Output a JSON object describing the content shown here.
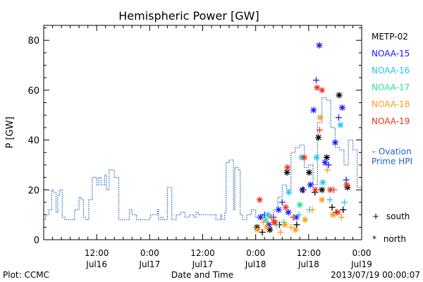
{
  "chart_data": {
    "type": "scatter",
    "title": "Hemispheric Power [GW]",
    "ylabel": "P [GW]",
    "xlabel": "Date and Time",
    "ylim": [
      0,
      86
    ],
    "xlim_hours": [
      0,
      72
    ],
    "yticks": [
      0,
      20,
      40,
      60,
      80
    ],
    "xticks": [
      {
        "h": 12,
        "time": "12:00",
        "date": "Jul16"
      },
      {
        "h": 24,
        "time": "0:00",
        "date": "Jul17"
      },
      {
        "h": 36,
        "time": "12:00",
        "date": "Jul17"
      },
      {
        "h": 48,
        "time": "0:00",
        "date": "Jul18"
      },
      {
        "h": 60,
        "time": "12:00",
        "date": "Jul18"
      },
      {
        "h": 72,
        "time": "0:00",
        "date": "Jul19"
      }
    ],
    "legend": [
      {
        "name": "METP-02",
        "color": "#000000"
      },
      {
        "name": "NOAA-15",
        "color": "#1a1aff"
      },
      {
        "name": "NOAA-16",
        "color": "#1ec8ee"
      },
      {
        "name": "NOAA-17",
        "color": "#22e88a"
      },
      {
        "name": "NOAA-18",
        "color": "#ff9a1a"
      },
      {
        "name": "NOAA-19",
        "color": "#ee3322"
      }
    ],
    "ovation": {
      "label_line1": "– Ovation",
      "label_line2": "Prime HPI",
      "color": "#2266bb",
      "x": [
        0,
        0.4,
        1.2,
        1.8,
        2.2,
        2.8,
        3.2,
        3.6,
        4.2,
        4.8,
        5.5,
        6.5,
        7,
        7.4,
        8,
        8.5,
        9,
        9.5,
        10.2,
        11,
        12,
        12.4,
        13,
        13.8,
        14.2,
        14.8,
        15.5,
        16,
        17,
        17.3,
        18,
        19,
        19.4,
        20,
        21,
        22,
        23,
        24,
        24.2,
        25,
        25.8,
        26,
        26.5,
        27,
        28,
        29,
        30,
        31,
        32,
        33,
        34,
        34.5,
        35,
        36,
        38,
        39,
        40,
        40.3,
        41,
        41.3,
        42,
        43,
        43.3,
        44,
        44.5,
        45,
        46,
        47,
        48,
        49,
        50,
        52,
        53,
        54,
        55,
        56,
        57,
        58,
        59,
        60,
        61,
        62,
        63,
        64,
        65,
        66,
        67,
        68,
        69,
        70,
        71,
        72
      ],
      "y": [
        8,
        10,
        12,
        20,
        19,
        11,
        18,
        20,
        9,
        8,
        8,
        8,
        12,
        12,
        17,
        16,
        9,
        8,
        16,
        25,
        22,
        25,
        22,
        26,
        20,
        28,
        28,
        25,
        8,
        8,
        8,
        8,
        12,
        10,
        8,
        8,
        8,
        9,
        10,
        10,
        12,
        8,
        9,
        8,
        21,
        8,
        10,
        11,
        9,
        10,
        9,
        11,
        10,
        10,
        10,
        8,
        10,
        8,
        11,
        31,
        32,
        12,
        29,
        28,
        10,
        8,
        10,
        12,
        9,
        10,
        10,
        12,
        17,
        22,
        20,
        35,
        37,
        38,
        29,
        30,
        22,
        47,
        57,
        56,
        45,
        37,
        36,
        30,
        40,
        36,
        21,
        10
      ]
    },
    "points": [
      {
        "sat": 0,
        "x": 48.3,
        "y": 5,
        "m": "*"
      },
      {
        "sat": 0,
        "x": 49.5,
        "y": 3,
        "m": "+"
      },
      {
        "sat": 0,
        "x": 51.2,
        "y": 4,
        "m": "*"
      },
      {
        "sat": 0,
        "x": 53.4,
        "y": 6,
        "m": "+"
      },
      {
        "sat": 0,
        "x": 55.1,
        "y": 27,
        "m": "*"
      },
      {
        "sat": 0,
        "x": 57.3,
        "y": 6,
        "m": "+"
      },
      {
        "sat": 0,
        "x": 58.6,
        "y": 20,
        "m": "*"
      },
      {
        "sat": 0,
        "x": 60.1,
        "y": 27,
        "m": "*"
      },
      {
        "sat": 0,
        "x": 61.4,
        "y": 19,
        "m": "+"
      },
      {
        "sat": 0,
        "x": 62.2,
        "y": 41,
        "m": "*"
      },
      {
        "sat": 0,
        "x": 63.0,
        "y": 20,
        "m": "*"
      },
      {
        "sat": 0,
        "x": 64.1,
        "y": 33,
        "m": "*"
      },
      {
        "sat": 0,
        "x": 65.3,
        "y": 13,
        "m": "+"
      },
      {
        "sat": 0,
        "x": 66.2,
        "y": 11,
        "m": "+"
      },
      {
        "sat": 0,
        "x": 66.9,
        "y": 58,
        "m": "*"
      },
      {
        "sat": 0,
        "x": 67.8,
        "y": 12,
        "m": "+"
      },
      {
        "sat": 0,
        "x": 68.8,
        "y": 21,
        "m": "*"
      },
      {
        "sat": 1,
        "x": 49.1,
        "y": 9,
        "m": "*"
      },
      {
        "sat": 1,
        "x": 50.0,
        "y": 10,
        "m": "+"
      },
      {
        "sat": 1,
        "x": 51.0,
        "y": 6,
        "m": "*"
      },
      {
        "sat": 1,
        "x": 52.0,
        "y": 9,
        "m": "+"
      },
      {
        "sat": 1,
        "x": 53.2,
        "y": 12,
        "m": "*"
      },
      {
        "sat": 1,
        "x": 54.0,
        "y": 15,
        "m": "+"
      },
      {
        "sat": 1,
        "x": 55.4,
        "y": 11,
        "m": "*"
      },
      {
        "sat": 1,
        "x": 57.2,
        "y": 9,
        "m": "*"
      },
      {
        "sat": 1,
        "x": 58.8,
        "y": 20,
        "m": "+"
      },
      {
        "sat": 1,
        "x": 60.4,
        "y": 22,
        "m": "*"
      },
      {
        "sat": 1,
        "x": 61.1,
        "y": 52,
        "m": "*"
      },
      {
        "sat": 1,
        "x": 61.7,
        "y": 64,
        "m": "+"
      },
      {
        "sat": 1,
        "x": 62.4,
        "y": 78,
        "m": "*"
      },
      {
        "sat": 1,
        "x": 63.7,
        "y": 31,
        "m": "*"
      },
      {
        "sat": 1,
        "x": 64.5,
        "y": 30,
        "m": "+"
      },
      {
        "sat": 1,
        "x": 66.0,
        "y": 39,
        "m": "*"
      },
      {
        "sat": 1,
        "x": 66.8,
        "y": 49,
        "m": "+"
      },
      {
        "sat": 1,
        "x": 67.6,
        "y": 53,
        "m": "*"
      },
      {
        "sat": 1,
        "x": 68.5,
        "y": 24,
        "m": "+"
      },
      {
        "sat": 2,
        "x": 50.8,
        "y": 10,
        "m": "*"
      },
      {
        "sat": 2,
        "x": 52.7,
        "y": 6,
        "m": "+"
      },
      {
        "sat": 2,
        "x": 55.5,
        "y": 19,
        "m": "*"
      },
      {
        "sat": 2,
        "x": 57.8,
        "y": 10,
        "m": "+"
      },
      {
        "sat": 2,
        "x": 58.4,
        "y": 33,
        "m": "*"
      },
      {
        "sat": 2,
        "x": 60.2,
        "y": 12,
        "m": "+"
      },
      {
        "sat": 2,
        "x": 61.8,
        "y": 33,
        "m": "*"
      },
      {
        "sat": 2,
        "x": 63.2,
        "y": 23,
        "m": "*"
      },
      {
        "sat": 2,
        "x": 64.8,
        "y": 16,
        "m": "+"
      },
      {
        "sat": 2,
        "x": 67.2,
        "y": 46,
        "m": "*"
      },
      {
        "sat": 2,
        "x": 68.1,
        "y": 15,
        "m": "+"
      },
      {
        "sat": 3,
        "x": 50.3,
        "y": 8,
        "m": "*"
      },
      {
        "sat": 3,
        "x": 54.4,
        "y": 7,
        "m": "+"
      },
      {
        "sat": 3,
        "x": 58.0,
        "y": 14,
        "m": "*"
      },
      {
        "sat": 4,
        "x": 48.4,
        "y": 4,
        "m": "*"
      },
      {
        "sat": 4,
        "x": 49.7,
        "y": 7,
        "m": "+"
      },
      {
        "sat": 4,
        "x": 50.5,
        "y": 5,
        "m": "*"
      },
      {
        "sat": 4,
        "x": 52.4,
        "y": 7,
        "m": "*"
      },
      {
        "sat": 4,
        "x": 53.6,
        "y": 3,
        "m": "+"
      },
      {
        "sat": 4,
        "x": 54.6,
        "y": 6,
        "m": "*"
      },
      {
        "sat": 4,
        "x": 56.0,
        "y": 5,
        "m": "+"
      },
      {
        "sat": 4,
        "x": 57.0,
        "y": 4,
        "m": "*"
      },
      {
        "sat": 4,
        "x": 59.2,
        "y": 8,
        "m": "*"
      },
      {
        "sat": 4,
        "x": 60.8,
        "y": 12,
        "m": "+"
      },
      {
        "sat": 4,
        "x": 62.6,
        "y": 49,
        "m": "*"
      },
      {
        "sat": 4,
        "x": 63.0,
        "y": 16,
        "m": "*"
      },
      {
        "sat": 4,
        "x": 64.2,
        "y": 28,
        "m": "+"
      },
      {
        "sat": 4,
        "x": 65.5,
        "y": 10,
        "m": "*"
      },
      {
        "sat": 4,
        "x": 67.4,
        "y": 9,
        "m": "+"
      },
      {
        "sat": 5,
        "x": 48.9,
        "y": 16,
        "m": "*"
      },
      {
        "sat": 5,
        "x": 51.5,
        "y": 9,
        "m": "+"
      },
      {
        "sat": 5,
        "x": 52.2,
        "y": 7,
        "m": "*"
      },
      {
        "sat": 5,
        "x": 54.8,
        "y": 13,
        "m": "*"
      },
      {
        "sat": 5,
        "x": 55.2,
        "y": 29,
        "m": "*"
      },
      {
        "sat": 5,
        "x": 56.5,
        "y": 9,
        "m": "+"
      },
      {
        "sat": 5,
        "x": 59.0,
        "y": 33,
        "m": "*"
      },
      {
        "sat": 5,
        "x": 61.5,
        "y": 20,
        "m": "*"
      },
      {
        "sat": 5,
        "x": 61.9,
        "y": 61,
        "m": "*"
      },
      {
        "sat": 5,
        "x": 62.5,
        "y": 44,
        "m": "+"
      },
      {
        "sat": 5,
        "x": 63.0,
        "y": 60,
        "m": "*"
      },
      {
        "sat": 5,
        "x": 64.9,
        "y": 20,
        "m": "*"
      },
      {
        "sat": 5,
        "x": 65.7,
        "y": 20,
        "m": "+"
      },
      {
        "sat": 5,
        "x": 66.6,
        "y": 11,
        "m": "*"
      },
      {
        "sat": 5,
        "x": 68.6,
        "y": 22,
        "m": "*"
      }
    ],
    "marker_key": [
      {
        "symbol": "+",
        "label": "south"
      },
      {
        "symbol": "*",
        "label": "north"
      }
    ],
    "footer_left": "Plot: CCMC",
    "footer_right": "2013/07/19 00:00:07"
  }
}
